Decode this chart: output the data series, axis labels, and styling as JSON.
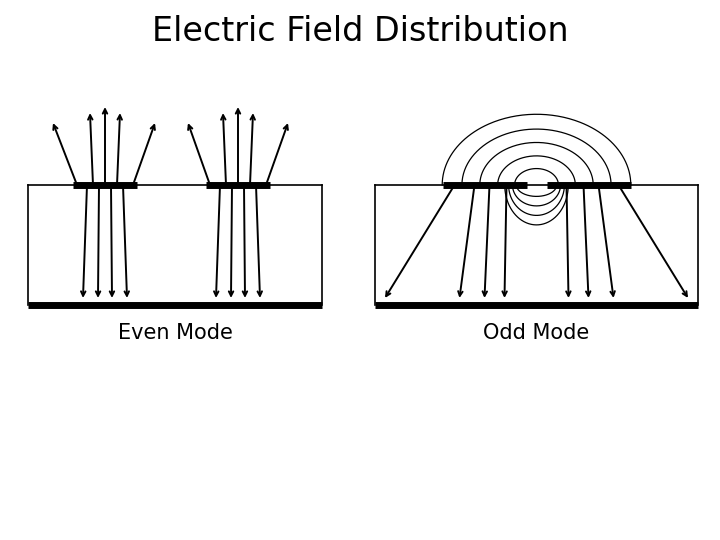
{
  "title": "Electric Field Distribution",
  "title_fontsize": 24,
  "label_even": "Even Mode",
  "label_odd": "Odd Mode",
  "label_fontsize": 15,
  "bg_color": "#ffffff",
  "line_color": "#000000",
  "arrow_color": "#000000",
  "fig_w": 7.2,
  "fig_h": 5.4,
  "dpi": 100
}
